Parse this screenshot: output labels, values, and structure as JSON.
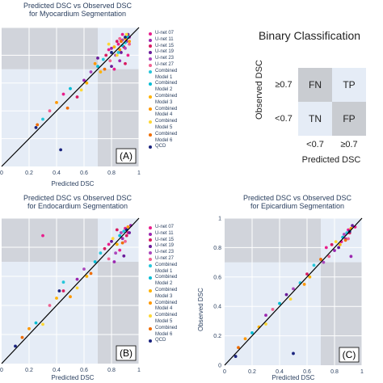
{
  "colors": {
    "plot_bg": "#e5ecf6",
    "quadrant": "#c9ccd1",
    "grid": "#ffffff",
    "identity": "#000000"
  },
  "legend_entries": [
    "U-net 07",
    "U-net 11",
    "U-net 15",
    "U-net 19",
    "U-net 23",
    "U-net 27",
    "Combined\nModel 1",
    "Combined\nModel 2",
    "Combined\nModel 3",
    "Combined\nModel 4",
    "Combined\nModel 5",
    "Combined\nModel 6",
    "QCD"
  ],
  "legend_colors": [
    "#e91e8c",
    "#9c27b0",
    "#d81b60",
    "#6a1b9a",
    "#ab47bc",
    "#f06292",
    "#26c6da",
    "#00bcd4",
    "#ffb300",
    "#ff9800",
    "#fdd835",
    "#ef6c00",
    "#1a237e"
  ],
  "panels": [
    {
      "title_line1": "Predicted DSC vs Observed DSC",
      "title_line2": "for Myocardium Segmentation",
      "xlabel": "Predicted DSC",
      "ylabel": "",
      "tag": "(A)"
    },
    {
      "title_line1": "Predicted DSC vs Observed DSC",
      "title_line2": "for Endocardium Segmentation",
      "xlabel": "Predicted DSC",
      "ylabel": "",
      "tag": "(B)"
    },
    {
      "title_line1": "Predicted DSC vs Observed DSC",
      "title_line2": "for Epicardium Segmentation",
      "xlabel": "Predicted DSC",
      "ylabel": "Observed DSC",
      "tag": "(C)"
    }
  ],
  "matrix": {
    "title": "Binary Classification",
    "ylabel": "Observed DSC",
    "xlabel": "Predicted DSC",
    "row_labels": [
      "≥0.7",
      "<0.7"
    ],
    "col_labels": [
      "<0.7",
      "≥0.7"
    ],
    "cells": [
      "FN",
      "TP",
      "TN",
      "FP"
    ]
  },
  "chart_data": [
    {
      "type": "scatter",
      "title": "Predicted DSC vs Observed DSC for Myocardium Segmentation",
      "xlabel": "Predicted DSC",
      "ylabel": "",
      "xlim": [
        0,
        1
      ],
      "ylim": [
        0,
        1
      ],
      "xticks": [
        "0",
        "0.2",
        "0.4",
        "0.6",
        "0.8",
        "1"
      ],
      "yticks": [],
      "threshold": 0.7,
      "identity_line": true,
      "series": [
        {
          "name": "U-net 07",
          "points": [
            [
              0.9,
              0.92
            ],
            [
              0.85,
              0.88
            ],
            [
              0.92,
              0.8
            ],
            [
              0.78,
              0.84
            ],
            [
              0.88,
              0.95
            ],
            [
              0.82,
              0.7
            ],
            [
              0.45,
              0.52
            ]
          ]
        },
        {
          "name": "U-net 11",
          "points": [
            [
              0.91,
              0.9
            ],
            [
              0.86,
              0.76
            ],
            [
              0.8,
              0.85
            ],
            [
              0.93,
              0.93
            ],
            [
              0.6,
              0.62
            ]
          ]
        },
        {
          "name": "U-net 15",
          "points": [
            [
              0.89,
              0.86
            ],
            [
              0.84,
              0.9
            ],
            [
              0.9,
              0.74
            ],
            [
              0.76,
              0.8
            ],
            [
              0.55,
              0.5
            ]
          ]
        },
        {
          "name": "U-net 19",
          "points": [
            [
              0.92,
              0.95
            ],
            [
              0.87,
              0.82
            ],
            [
              0.8,
              0.72
            ],
            [
              0.7,
              0.78
            ]
          ]
        },
        {
          "name": "U-net 23",
          "points": [
            [
              0.88,
              0.91
            ],
            [
              0.83,
              0.8
            ],
            [
              0.9,
              0.85
            ],
            [
              0.65,
              0.68
            ]
          ]
        },
        {
          "name": "U-net 27",
          "points": [
            [
              0.93,
              0.88
            ],
            [
              0.86,
              0.92
            ],
            [
              0.79,
              0.76
            ],
            [
              0.35,
              0.4
            ]
          ]
        },
        {
          "name": "Combined Model 1",
          "points": [
            [
              0.9,
              0.89
            ],
            [
              0.74,
              0.77
            ],
            [
              0.3,
              0.34
            ],
            [
              0.85,
              0.82
            ]
          ]
        },
        {
          "name": "Combined Model 2",
          "points": [
            [
              0.88,
              0.87
            ],
            [
              0.7,
              0.72
            ],
            [
              0.5,
              0.56
            ],
            [
              0.92,
              0.93
            ]
          ]
        },
        {
          "name": "Combined Model 3",
          "points": [
            [
              0.82,
              0.86
            ],
            [
              0.72,
              0.68
            ],
            [
              0.62,
              0.6
            ],
            [
              0.9,
              0.92
            ]
          ]
        },
        {
          "name": "Combined Model 4",
          "points": [
            [
              0.86,
              0.84
            ],
            [
              0.68,
              0.74
            ],
            [
              0.4,
              0.46
            ],
            [
              0.93,
              0.9
            ]
          ]
        },
        {
          "name": "Combined Model 5",
          "points": [
            [
              0.84,
              0.8
            ],
            [
              0.78,
              0.88
            ],
            [
              0.58,
              0.55
            ],
            [
              0.91,
              0.95
            ]
          ]
        },
        {
          "name": "Combined Model 6",
          "points": [
            [
              0.87,
              0.9
            ],
            [
              0.75,
              0.7
            ],
            [
              0.48,
              0.42
            ],
            [
              0.26,
              0.3
            ]
          ]
        },
        {
          "name": "QCD",
          "points": [
            [
              0.9,
              0.93
            ],
            [
              0.8,
              0.82
            ],
            [
              0.25,
              0.28
            ],
            [
              0.43,
              0.12
            ]
          ]
        }
      ]
    },
    {
      "type": "scatter",
      "title": "Predicted DSC vs Observed DSC for Endocardium Segmentation",
      "xlabel": "Predicted DSC",
      "ylabel": "",
      "xlim": [
        0,
        1
      ],
      "ylim": [
        0,
        1
      ],
      "xticks": [
        "0",
        "0.2",
        "0.4",
        "0.6",
        "0.8",
        "1"
      ],
      "yticks": [],
      "threshold": 0.7,
      "identity_line": true,
      "series": [
        {
          "name": "U-net 07",
          "points": [
            [
              0.9,
              0.93
            ],
            [
              0.86,
              0.78
            ],
            [
              0.3,
              0.88
            ],
            [
              0.78,
              0.82
            ],
            [
              0.92,
              0.9
            ]
          ]
        },
        {
          "name": "U-net 11",
          "points": [
            [
              0.88,
              0.86
            ],
            [
              0.82,
              0.7
            ],
            [
              0.94,
              0.95
            ],
            [
              0.55,
              0.58
            ]
          ]
        },
        {
          "name": "U-net 15",
          "points": [
            [
              0.91,
              0.88
            ],
            [
              0.84,
              0.92
            ],
            [
              0.75,
              0.79
            ],
            [
              0.45,
              0.5
            ]
          ]
        },
        {
          "name": "U-net 19",
          "points": [
            [
              0.93,
              0.9
            ],
            [
              0.8,
              0.84
            ],
            [
              0.89,
              0.74
            ]
          ]
        },
        {
          "name": "U-net 23",
          "points": [
            [
              0.87,
              0.9
            ],
            [
              0.83,
              0.76
            ],
            [
              0.6,
              0.65
            ]
          ]
        },
        {
          "name": "U-net 27",
          "points": [
            [
              0.9,
              0.84
            ],
            [
              0.78,
              0.72
            ],
            [
              0.35,
              0.4
            ]
          ]
        },
        {
          "name": "Combined Model 1",
          "points": [
            [
              0.89,
              0.91
            ],
            [
              0.45,
              0.56
            ],
            [
              0.72,
              0.76
            ]
          ]
        },
        {
          "name": "Combined Model 2",
          "points": [
            [
              0.86,
              0.88
            ],
            [
              0.25,
              0.28
            ],
            [
              0.68,
              0.7
            ]
          ]
        },
        {
          "name": "Combined Model 3",
          "points": [
            [
              0.84,
              0.82
            ],
            [
              0.62,
              0.6
            ],
            [
              0.4,
              0.45
            ]
          ]
        },
        {
          "name": "Combined Model 4",
          "points": [
            [
              0.92,
              0.94
            ],
            [
              0.5,
              0.46
            ],
            [
              0.2,
              0.24
            ]
          ]
        },
        {
          "name": "Combined Model 5",
          "points": [
            [
              0.81,
              0.86
            ],
            [
              0.55,
              0.52
            ],
            [
              0.3,
              0.27
            ]
          ]
        },
        {
          "name": "Combined Model 6",
          "points": [
            [
              0.88,
              0.83
            ],
            [
              0.65,
              0.62
            ],
            [
              0.15,
              0.18
            ]
          ]
        },
        {
          "name": "QCD",
          "points": [
            [
              0.91,
              0.92
            ],
            [
              0.42,
              0.5
            ],
            [
              0.1,
              0.12
            ]
          ]
        }
      ]
    },
    {
      "type": "scatter",
      "title": "Predicted DSC vs Observed DSC for Epicardium Segmentation",
      "xlabel": "Predicted DSC",
      "ylabel": "Observed DSC",
      "xlim": [
        0,
        1
      ],
      "ylim": [
        0,
        1
      ],
      "xticks": [
        "0",
        "0.2",
        "0.4",
        "0.6",
        "0.8",
        "1"
      ],
      "yticks": [
        "0",
        "0.2",
        "0.4",
        "0.6",
        "0.8",
        "1"
      ],
      "threshold": 0.7,
      "identity_line": true,
      "series": [
        {
          "name": "U-net 07",
          "points": [
            [
              0.9,
              0.92
            ],
            [
              0.85,
              0.84
            ],
            [
              0.74,
              0.8
            ],
            [
              0.95,
              0.94
            ]
          ]
        },
        {
          "name": "U-net 11",
          "points": [
            [
              0.88,
              0.86
            ],
            [
              0.8,
              0.78
            ],
            [
              0.92,
              0.74
            ],
            [
              0.3,
              0.34
            ]
          ]
        },
        {
          "name": "U-net 15",
          "points": [
            [
              0.91,
              0.9
            ],
            [
              0.78,
              0.82
            ],
            [
              0.6,
              0.62
            ]
          ]
        },
        {
          "name": "U-net 19",
          "points": [
            [
              0.93,
              0.95
            ],
            [
              0.83,
              0.8
            ],
            [
              0.45,
              0.48
            ]
          ]
        },
        {
          "name": "U-net 23",
          "points": [
            [
              0.87,
              0.89
            ],
            [
              0.72,
              0.7
            ],
            [
              0.5,
              0.52
            ]
          ]
        },
        {
          "name": "U-net 27",
          "points": [
            [
              0.9,
              0.86
            ],
            [
              0.76,
              0.74
            ],
            [
              0.35,
              0.38
            ]
          ]
        },
        {
          "name": "Combined Model 1",
          "points": [
            [
              0.89,
              0.9
            ],
            [
              0.65,
              0.68
            ],
            [
              0.55,
              0.56
            ]
          ]
        },
        {
          "name": "Combined Model 2",
          "points": [
            [
              0.86,
              0.87
            ],
            [
              0.4,
              0.42
            ],
            [
              0.2,
              0.22
            ]
          ]
        },
        {
          "name": "Combined Model 3",
          "points": [
            [
              0.84,
              0.82
            ],
            [
              0.62,
              0.6
            ],
            [
              0.25,
              0.26
            ]
          ]
        },
        {
          "name": "Combined Model 4",
          "points": [
            [
              0.92,
              0.93
            ],
            [
              0.58,
              0.55
            ],
            [
              0.15,
              0.18
            ]
          ]
        },
        {
          "name": "Combined Model 5",
          "points": [
            [
              0.81,
              0.84
            ],
            [
              0.48,
              0.45
            ],
            [
              0.3,
              0.28
            ]
          ]
        },
        {
          "name": "Combined Model 6",
          "points": [
            [
              0.88,
              0.85
            ],
            [
              0.7,
              0.72
            ],
            [
              0.1,
              0.12
            ]
          ]
        },
        {
          "name": "QCD",
          "points": [
            [
              0.91,
              0.91
            ],
            [
              0.5,
              0.08
            ],
            [
              0.08,
              0.06
            ]
          ]
        }
      ]
    }
  ]
}
